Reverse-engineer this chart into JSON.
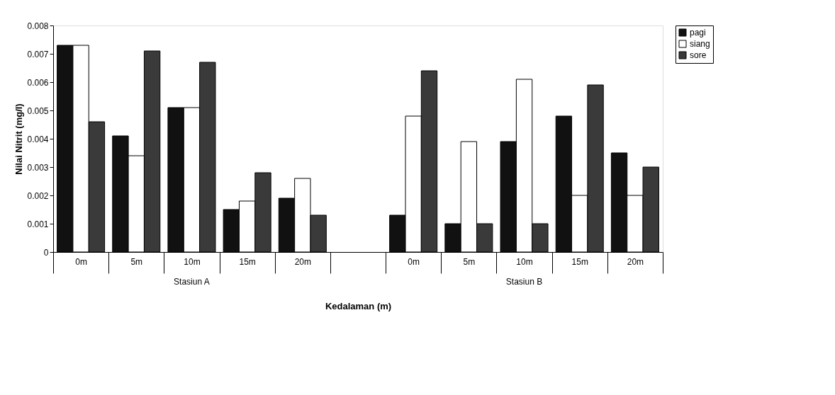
{
  "chart_data": {
    "type": "bar",
    "categories": [
      "0m",
      "5m",
      "10m",
      "15m",
      "20m",
      null,
      "0m",
      "5m",
      "10m",
      "15m",
      "20m"
    ],
    "series": [
      {
        "name": "pagi",
        "color": "#111111",
        "values": [
          0.0073,
          0.0041,
          0.0051,
          0.0015,
          0.0019,
          null,
          0.0013,
          0.001,
          0.0039,
          0.0048,
          0.0035
        ]
      },
      {
        "name": "siang",
        "color": "#ffffff",
        "values": [
          0.0073,
          0.0034,
          0.0051,
          0.0018,
          0.0026,
          null,
          0.0048,
          0.0039,
          0.0061,
          0.002,
          0.002
        ]
      },
      {
        "name": "sore",
        "color": "#3a3a3a",
        "values": [
          0.0046,
          0.0071,
          0.0067,
          0.0028,
          0.0013,
          null,
          0.0064,
          0.001,
          0.001,
          0.0059,
          0.003
        ]
      }
    ],
    "xlabel": "Kedalaman (m)",
    "ylabel": "Nilai Nitrit (mg/l)",
    "ylim": [
      0,
      0.008
    ],
    "yticks": [
      0,
      0.001,
      0.002,
      0.003,
      0.004,
      0.005,
      0.006,
      0.007,
      0.008
    ],
    "annotations": [
      "Stasiun A",
      "Stasiun B"
    ],
    "grid": false,
    "legend": "right"
  }
}
